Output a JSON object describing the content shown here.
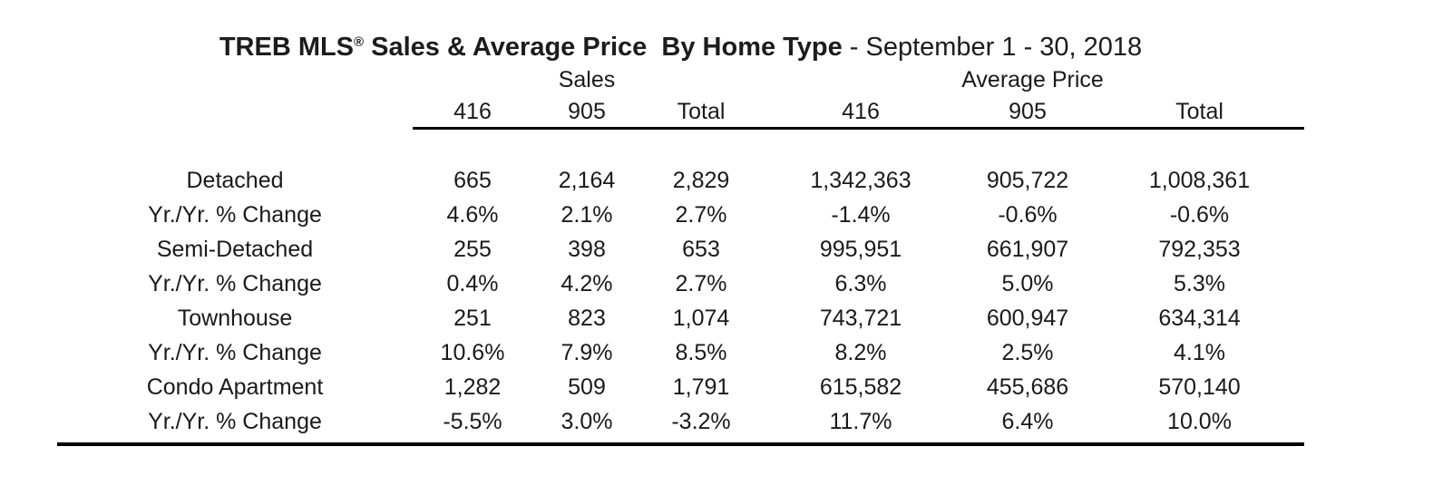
{
  "title": {
    "brand": "TREB MLS",
    "registered_mark": "®",
    "bold_rest": " Sales & Average Price  By Home Type",
    "separator": " - ",
    "date_range": "September 1 - 30, 2018"
  },
  "table": {
    "group_headers": [
      "Sales",
      "Average Price"
    ],
    "column_headers": [
      "416",
      "905",
      "Total",
      "416",
      "905",
      "Total"
    ],
    "rows": [
      {
        "label": "Detached",
        "values": [
          "665",
          "2,164",
          "2,829",
          "1,342,363",
          "905,722",
          "1,008,361"
        ]
      },
      {
        "label": "Yr./Yr. % Change",
        "values": [
          "4.6%",
          "2.1%",
          "2.7%",
          "-1.4%",
          "-0.6%",
          "-0.6%"
        ]
      },
      {
        "label": "Semi-Detached",
        "values": [
          "255",
          "398",
          "653",
          "995,951",
          "661,907",
          "792,353"
        ]
      },
      {
        "label": "Yr./Yr. % Change",
        "values": [
          "0.4%",
          "4.2%",
          "2.7%",
          "6.3%",
          "5.0%",
          "5.3%"
        ]
      },
      {
        "label": "Townhouse",
        "values": [
          "251",
          "823",
          "1,074",
          "743,721",
          "600,947",
          "634,314"
        ]
      },
      {
        "label": "Yr./Yr. % Change",
        "values": [
          "10.6%",
          "7.9%",
          "8.5%",
          "8.2%",
          "2.5%",
          "4.1%"
        ]
      },
      {
        "label": "Condo Apartment",
        "values": [
          "1,282",
          "509",
          "1,791",
          "615,582",
          "455,686",
          "570,140"
        ]
      },
      {
        "label": "Yr./Yr. % Change",
        "values": [
          "-5.5%",
          "3.0%",
          "-3.2%",
          "11.7%",
          "6.4%",
          "10.0%"
        ]
      }
    ]
  },
  "chart_data": {
    "type": "table",
    "title": "TREB MLS® Sales & Average Price By Home Type - September 1 - 30, 2018",
    "column_groups": [
      "Sales",
      "Average Price"
    ],
    "columns": [
      "Sales 416",
      "Sales 905",
      "Sales Total",
      "Average Price 416",
      "Average Price 905",
      "Average Price Total"
    ],
    "home_types": [
      "Detached",
      "Semi-Detached",
      "Townhouse",
      "Condo Apartment"
    ],
    "sales": {
      "Detached": {
        "416": 665,
        "905": 2164,
        "Total": 2829
      },
      "Semi-Detached": {
        "416": 255,
        "905": 398,
        "Total": 653
      },
      "Townhouse": {
        "416": 251,
        "905": 823,
        "Total": 1074
      },
      "Condo Apartment": {
        "416": 1282,
        "905": 509,
        "Total": 1791
      }
    },
    "sales_yoy_pct_change": {
      "Detached": {
        "416": 4.6,
        "905": 2.1,
        "Total": 2.7
      },
      "Semi-Detached": {
        "416": 0.4,
        "905": 4.2,
        "Total": 2.7
      },
      "Townhouse": {
        "416": 10.6,
        "905": 7.9,
        "Total": 8.5
      },
      "Condo Apartment": {
        "416": -5.5,
        "905": 3.0,
        "Total": -3.2
      }
    },
    "average_price": {
      "Detached": {
        "416": 1342363,
        "905": 905722,
        "Total": 1008361
      },
      "Semi-Detached": {
        "416": 995951,
        "905": 661907,
        "Total": 792353
      },
      "Townhouse": {
        "416": 743721,
        "905": 600947,
        "Total": 634314
      },
      "Condo Apartment": {
        "416": 615582,
        "905": 455686,
        "Total": 570140
      }
    },
    "average_price_yoy_pct_change": {
      "Detached": {
        "416": -1.4,
        "905": -0.6,
        "Total": -0.6
      },
      "Semi-Detached": {
        "416": 6.3,
        "905": 5.0,
        "Total": 5.3
      },
      "Townhouse": {
        "416": 8.2,
        "905": 2.5,
        "Total": 4.1
      },
      "Condo Apartment": {
        "416": 11.7,
        "905": 6.4,
        "Total": 10.0
      }
    }
  },
  "colors": {
    "background": "#ffffff",
    "text": "#1a1a1a",
    "rule": "#000000"
  }
}
